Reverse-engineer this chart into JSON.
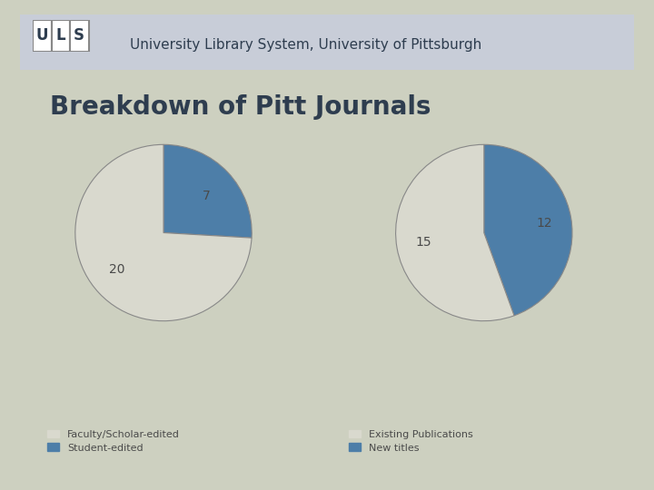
{
  "title": "Breakdown of Pitt Journals",
  "header_text": "University Library System, University of Pittsburgh",
  "pie1": {
    "values": [
      7,
      20
    ],
    "labels": [
      "7",
      "20"
    ],
    "colors": [
      "#4d7ea8",
      "#d9d9ce"
    ],
    "legend_labels": [
      "Faculty/Scholar-edited",
      "Student-edited"
    ]
  },
  "pie2": {
    "values": [
      12,
      15
    ],
    "labels": [
      "12",
      "15"
    ],
    "colors": [
      "#4d7ea8",
      "#d9d9ce"
    ],
    "legend_labels": [
      "Existing Publications",
      "New titles"
    ]
  },
  "background_color": "#cdd0c0",
  "slide_bg": "#f5f5f0",
  "header_bg": "#c8cdd8",
  "title_color": "#2e3d4f",
  "label_color": "#4a4a4a",
  "legend_color": "#4a4a4a"
}
